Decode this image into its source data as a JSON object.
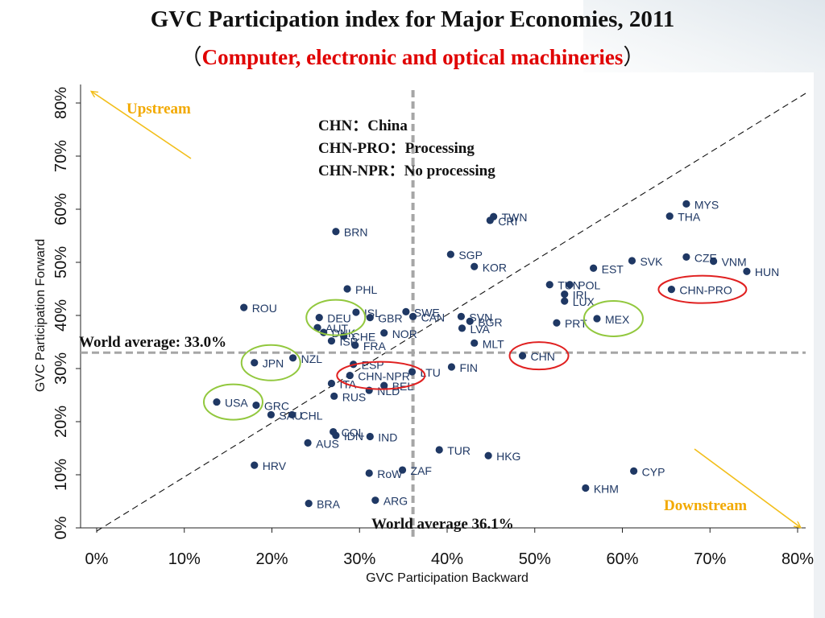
{
  "title": "GVC Participation index for Major Economies, 2011",
  "subtitle": {
    "open_paren": "（",
    "text": "Computer, electronic and optical machineries",
    "close_paren": "）"
  },
  "colors": {
    "point": "#1f3864",
    "highlight_green": "#92c83e",
    "highlight_red": "#e02020",
    "arrow": "#f2be1a",
    "annotation": "#f2a900",
    "average_line": "#a6a6a6"
  },
  "chart_data": {
    "type": "scatter",
    "xlabel": "GVC Participation Backward",
    "ylabel": "GVC Participation Forward",
    "xlim": [
      0,
      80
    ],
    "ylim": [
      0,
      80
    ],
    "x_ticks": [
      "0%",
      "10%",
      "20%",
      "30%",
      "40%",
      "50%",
      "60%",
      "70%",
      "80%"
    ],
    "y_ticks": [
      "0%",
      "10%",
      "20%",
      "30%",
      "40%",
      "50%",
      "60%",
      "70%",
      "80%"
    ],
    "world_average_forward": 33.0,
    "world_average_backward": 36.1,
    "world_average_forward_label": "World average: 33.0%",
    "world_average_backward_label": "World average 36.1%",
    "legend_lines": [
      "CHN：China",
      "CHN-PRO：Processing",
      "CHN-NPR：No processing"
    ],
    "upstream_label": "Upstream",
    "downstream_label": "Downstream",
    "points": [
      {
        "label": "MYS",
        "x": 67.3,
        "y": 61.0
      },
      {
        "label": "THA",
        "x": 65.4,
        "y": 58.7
      },
      {
        "label": "TWN",
        "x": 45.3,
        "y": 58.6
      },
      {
        "label": "CRI",
        "x": 44.9,
        "y": 57.9
      },
      {
        "label": "BRN",
        "x": 27.3,
        "y": 55.8
      },
      {
        "label": "SGP",
        "x": 40.4,
        "y": 51.5
      },
      {
        "label": "KOR",
        "x": 43.1,
        "y": 49.2
      },
      {
        "label": "SVK",
        "x": 61.1,
        "y": 50.3
      },
      {
        "label": "CZE",
        "x": 67.3,
        "y": 51.0
      },
      {
        "label": "VNM",
        "x": 70.4,
        "y": 50.2
      },
      {
        "label": "HUN",
        "x": 74.2,
        "y": 48.3
      },
      {
        "label": "EST",
        "x": 56.7,
        "y": 48.9
      },
      {
        "label": "TUN",
        "x": 51.7,
        "y": 45.8
      },
      {
        "label": "POL",
        "x": 54.0,
        "y": 45.8
      },
      {
        "label": "IRL",
        "x": 53.4,
        "y": 44.0
      },
      {
        "label": "LUX",
        "x": 53.4,
        "y": 42.7
      },
      {
        "label": "CHN-PRO",
        "x": 65.6,
        "y": 44.9
      },
      {
        "label": "PHL",
        "x": 28.6,
        "y": 45.0
      },
      {
        "label": "ROU",
        "x": 16.8,
        "y": 41.5
      },
      {
        "label": "ISL",
        "x": 29.6,
        "y": 40.6
      },
      {
        "label": "SWE",
        "x": 35.3,
        "y": 40.7
      },
      {
        "label": "DEU",
        "x": 25.4,
        "y": 39.6
      },
      {
        "label": "GBR",
        "x": 31.2,
        "y": 39.6
      },
      {
        "label": "CAN",
        "x": 36.1,
        "y": 39.8
      },
      {
        "label": "SVN",
        "x": 41.6,
        "y": 39.8
      },
      {
        "label": "BGR",
        "x": 42.6,
        "y": 38.9
      },
      {
        "label": "LVA",
        "x": 41.7,
        "y": 37.6
      },
      {
        "label": "MEX",
        "x": 57.1,
        "y": 39.4
      },
      {
        "label": "PRT",
        "x": 52.5,
        "y": 38.6
      },
      {
        "label": "AUT",
        "x": 25.2,
        "y": 37.7
      },
      {
        "label": "DNK",
        "x": 25.9,
        "y": 36.8
      },
      {
        "label": "NOR",
        "x": 32.8,
        "y": 36.7
      },
      {
        "label": "CHE",
        "x": 28.2,
        "y": 36.1
      },
      {
        "label": "ISR",
        "x": 26.8,
        "y": 35.2
      },
      {
        "label": "FRA",
        "x": 29.5,
        "y": 34.4
      },
      {
        "label": "MLT",
        "x": 43.1,
        "y": 34.8
      },
      {
        "label": "CHN",
        "x": 48.6,
        "y": 32.4
      },
      {
        "label": "NZL",
        "x": 22.4,
        "y": 32.0
      },
      {
        "label": "JPN",
        "x": 18.0,
        "y": 31.1
      },
      {
        "label": "ESP",
        "x": 29.3,
        "y": 30.8
      },
      {
        "label": "FIN",
        "x": 40.5,
        "y": 30.3
      },
      {
        "label": "LTU",
        "x": 36.0,
        "y": 29.4
      },
      {
        "label": "CHN-NPR",
        "x": 28.9,
        "y": 28.7
      },
      {
        "label": "ITA",
        "x": 26.8,
        "y": 27.2
      },
      {
        "label": "BEL",
        "x": 32.8,
        "y": 26.8
      },
      {
        "label": "NLD",
        "x": 31.1,
        "y": 25.9
      },
      {
        "label": "RUS",
        "x": 27.1,
        "y": 24.8
      },
      {
        "label": "USA",
        "x": 13.7,
        "y": 23.7
      },
      {
        "label": "GRC",
        "x": 18.2,
        "y": 23.1
      },
      {
        "label": "SAU",
        "x": 19.9,
        "y": 21.3
      },
      {
        "label": "CHL",
        "x": 22.3,
        "y": 21.3
      },
      {
        "label": "COL",
        "x": 27.0,
        "y": 18.1
      },
      {
        "label": "IDN",
        "x": 27.3,
        "y": 17.4
      },
      {
        "label": "IND",
        "x": 31.2,
        "y": 17.2
      },
      {
        "label": "AUS",
        "x": 24.1,
        "y": 16.0
      },
      {
        "label": "TUR",
        "x": 39.1,
        "y": 14.7
      },
      {
        "label": "HKG",
        "x": 44.7,
        "y": 13.6
      },
      {
        "label": "HRV",
        "x": 18.0,
        "y": 11.8
      },
      {
        "label": "ZAF",
        "x": 34.9,
        "y": 10.9
      },
      {
        "label": "RoW",
        "x": 31.1,
        "y": 10.3
      },
      {
        "label": "CYP",
        "x": 61.3,
        "y": 10.7
      },
      {
        "label": "KHM",
        "x": 55.8,
        "y": 7.5
      },
      {
        "label": "ARG",
        "x": 31.8,
        "y": 5.2
      },
      {
        "label": "BRA",
        "x": 24.2,
        "y": 4.6
      }
    ],
    "highlight_ellipses": [
      {
        "label": "DEU",
        "color": "green"
      },
      {
        "label": "JPN",
        "color": "green"
      },
      {
        "label": "USA",
        "color": "green"
      },
      {
        "label": "MEX",
        "color": "green"
      },
      {
        "label": "CHN-PRO",
        "color": "red"
      },
      {
        "label": "CHN",
        "color": "red"
      },
      {
        "label": "CHN-NPR",
        "color": "red"
      }
    ]
  }
}
